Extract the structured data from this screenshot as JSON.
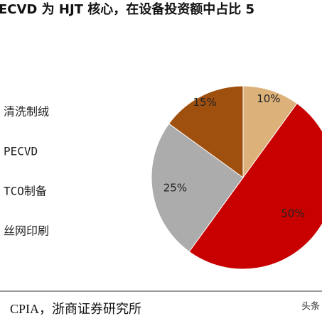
{
  "chart_data": {
    "type": "pie",
    "title": "ECVD 为 HJT 核心，在设备投资额中占比 5",
    "categories": [
      "清洗制绒",
      "PECVD",
      "TCO制备",
      "丝网印刷"
    ],
    "values": [
      10,
      50,
      25,
      15
    ],
    "value_labels": [
      "10%",
      "50%",
      "25%",
      "15%"
    ],
    "colors": [
      "#dcb27a",
      "#c80000",
      "#acacac",
      "#a0500e"
    ],
    "source": "CPIA，浙商证券研究所",
    "watermark": "头条"
  }
}
